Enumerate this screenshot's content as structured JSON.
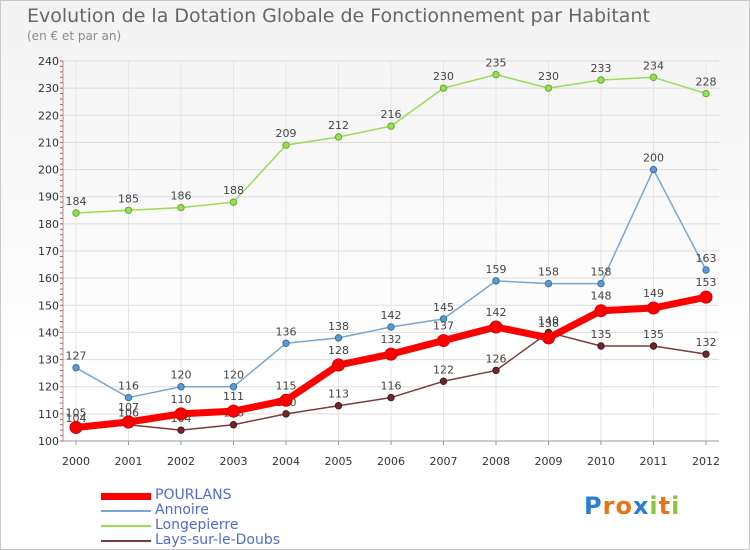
{
  "title": "Evolution de la Dotation Globale de Fonctionnement par Habitant",
  "subtitle": "(en € et par an)",
  "logo": {
    "letters": [
      "P",
      "r",
      "o",
      "x",
      "i",
      "t",
      "i"
    ],
    "colors": [
      "#2a7fd4",
      "#e8741a",
      "#e8741a",
      "#2a7fd4",
      "#8bc540",
      "#e8741a",
      "#8bc540"
    ]
  },
  "chart_data": {
    "type": "line",
    "title": "Evolution de la Dotation Globale de Fonctionnement par Habitant",
    "ylabel": "(en € et par an)",
    "x": [
      2000,
      2001,
      2002,
      2003,
      2004,
      2005,
      2006,
      2007,
      2008,
      2009,
      2010,
      2011,
      2012
    ],
    "ylim": [
      100,
      240
    ],
    "yticks": [
      100,
      110,
      120,
      130,
      140,
      150,
      160,
      170,
      180,
      190,
      200,
      210,
      220,
      230,
      240
    ],
    "grid": true,
    "legend": "bottom-left",
    "series": [
      {
        "name": "Longepierre",
        "color": "#99dd55",
        "values": [
          184,
          185,
          186,
          188,
          209,
          212,
          216,
          230,
          235,
          230,
          233,
          234,
          228
        ]
      },
      {
        "name": "Annoire",
        "color": "#7ba6cc",
        "values": [
          127,
          116,
          120,
          120,
          136,
          138,
          142,
          145,
          159,
          158,
          158,
          200,
          163
        ]
      },
      {
        "name": "Lays-sur-le-Doubs",
        "color": "#7a3c3c",
        "values": [
          104,
          106,
          104,
          106,
          110,
          113,
          116,
          122,
          126,
          140,
          135,
          135,
          132
        ]
      },
      {
        "name": "POURLANS",
        "color": "#ff0000",
        "values": [
          105,
          107,
          110,
          111,
          115,
          128,
          132,
          137,
          142,
          138,
          148,
          149,
          153
        ]
      }
    ],
    "legend_order": [
      "POURLANS",
      "Annoire",
      "Longepierre",
      "Lays-sur-le-Doubs"
    ]
  }
}
